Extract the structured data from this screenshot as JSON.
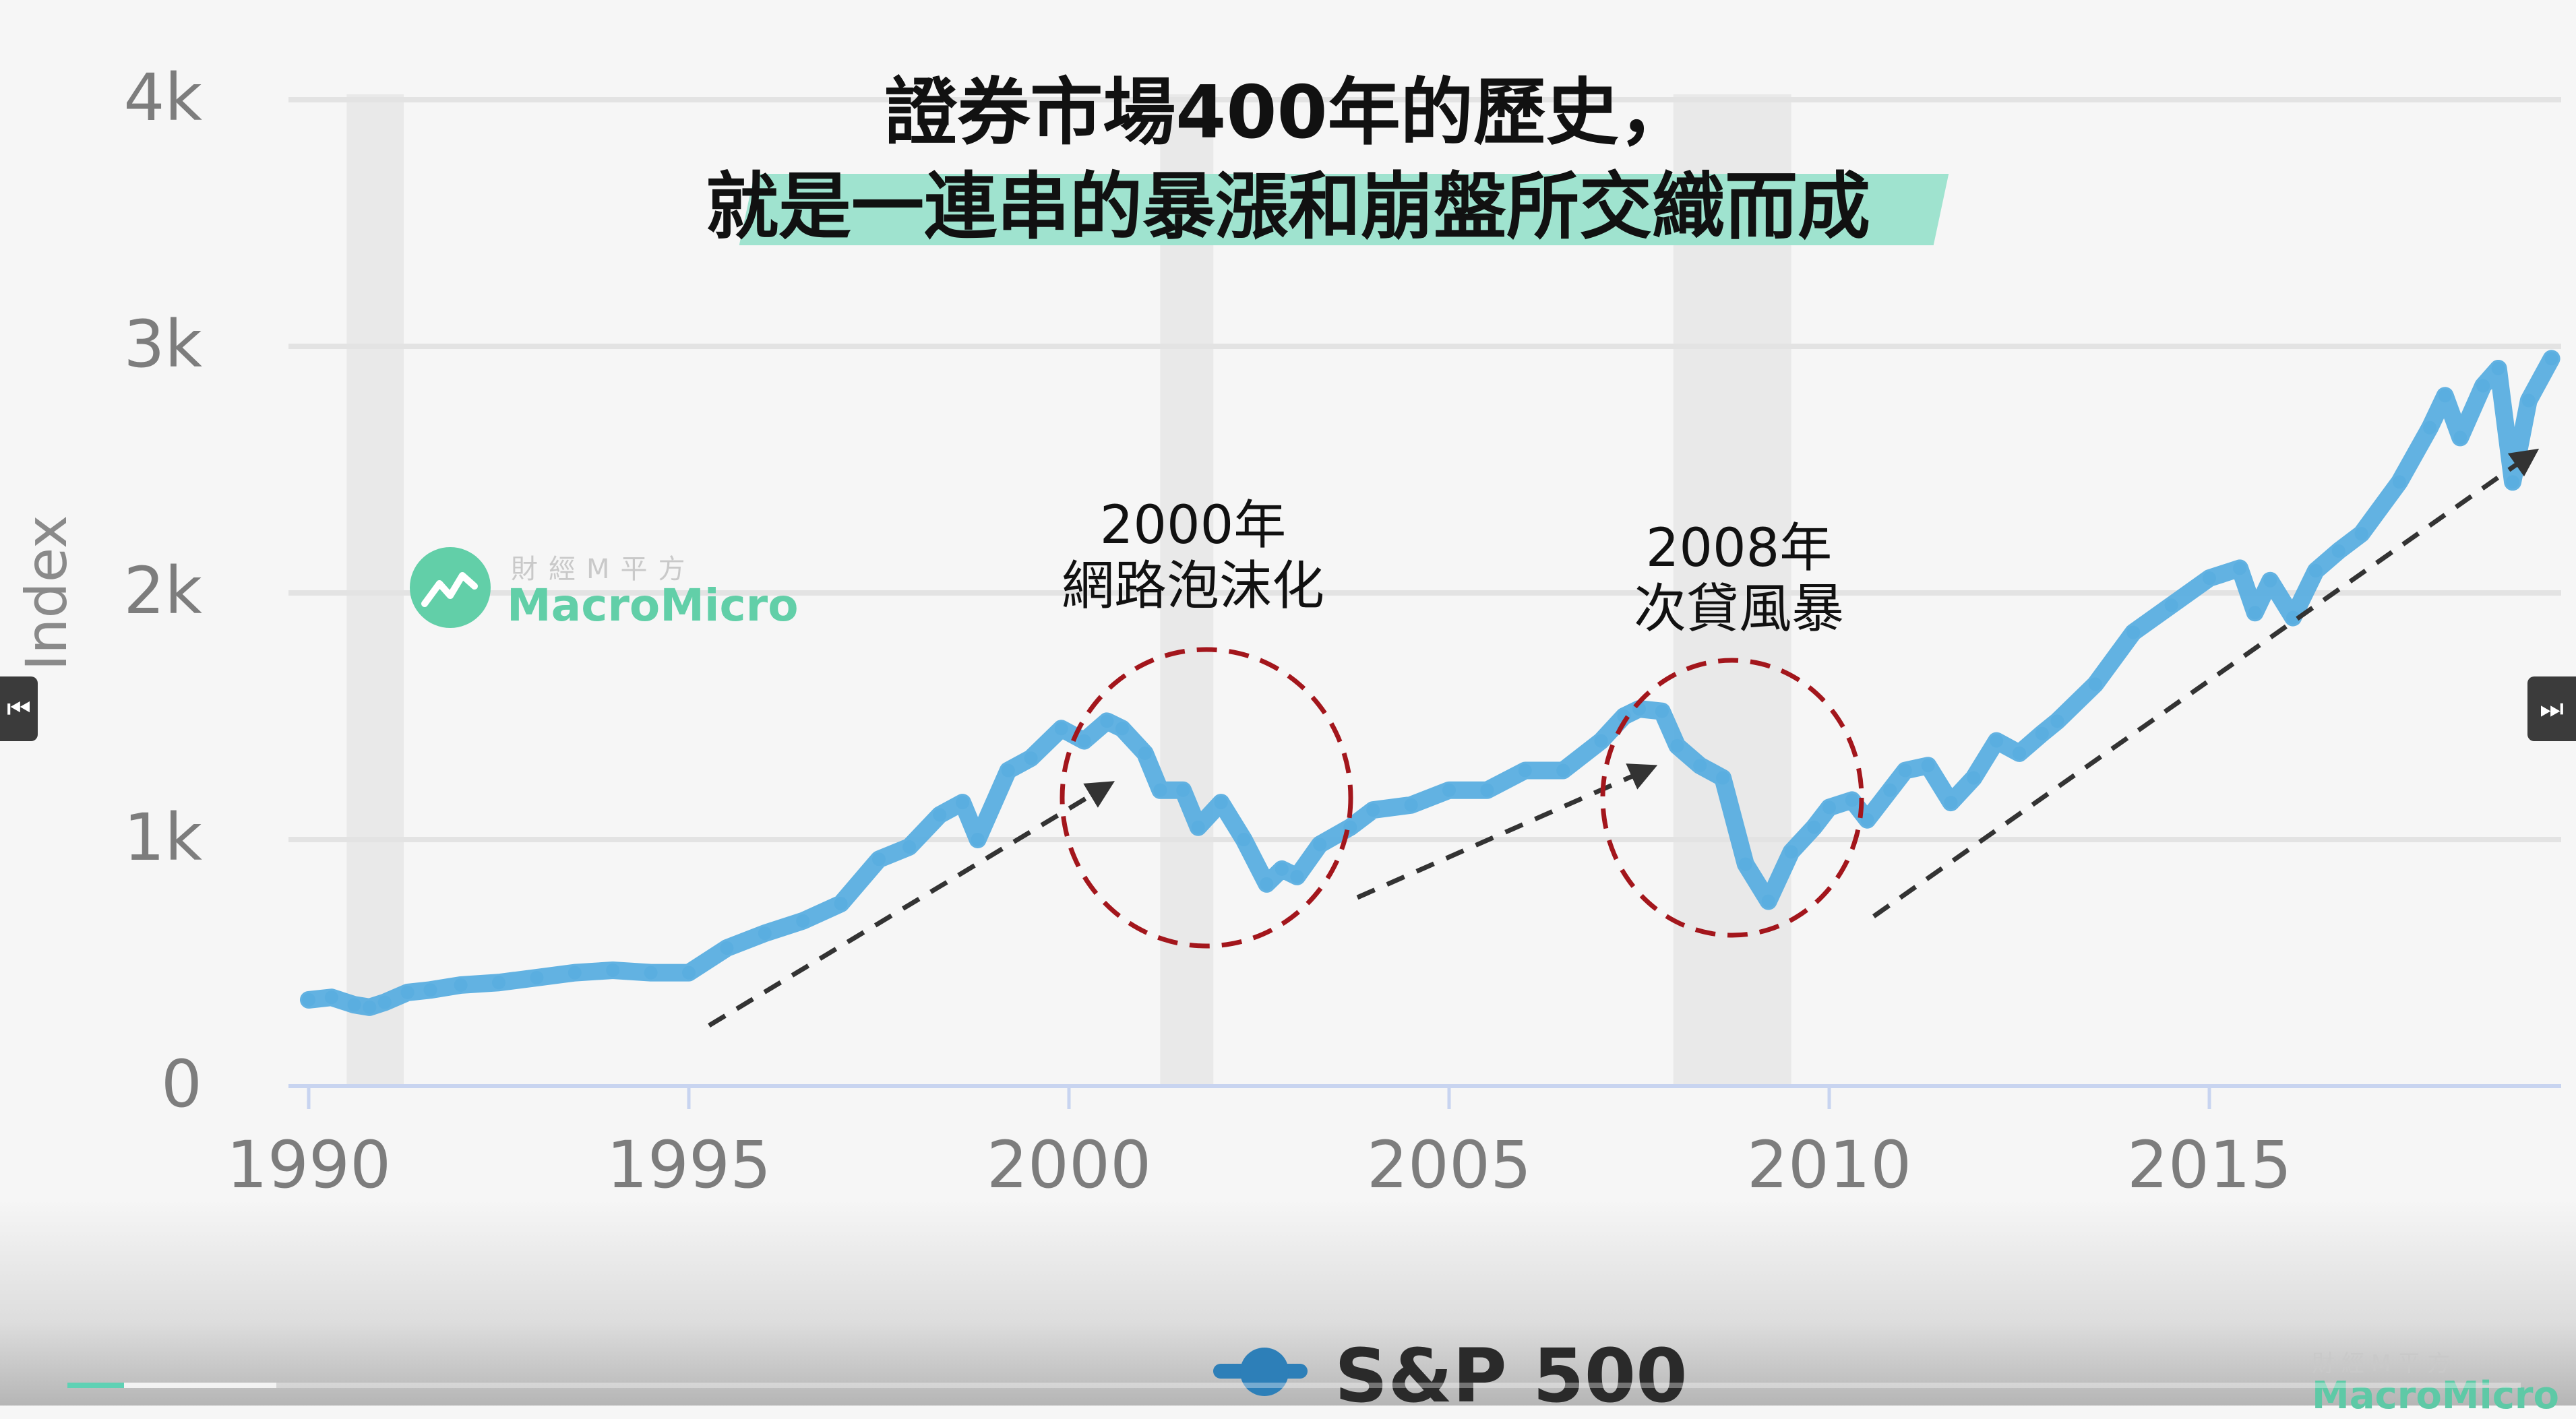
{
  "headline": {
    "line1": "證券市場400年的歷史，",
    "line2": "就是一連串的暴漲和崩盤所交織而成"
  },
  "annotations": [
    {
      "year": "2000年",
      "label": "網路泡沫化"
    },
    {
      "year": "2008年",
      "label": "次貸風暴"
    }
  ],
  "logo": {
    "cn": "財經M平方",
    "en": "MacroMicro"
  },
  "video": {
    "progress": 0.023
  },
  "colors": {
    "line": "#5aaee0",
    "accent": "#9fe3cf",
    "circle": "#a3161c",
    "arrow": "#333333",
    "recession": "#e6e6e6",
    "logo": "#62cfa8"
  },
  "chart_data": {
    "type": "line",
    "title": "",
    "xlabel": "",
    "ylabel": "Index",
    "xlim": [
      1990,
      2019.6
    ],
    "ylim": [
      0,
      4000
    ],
    "x_ticks": [
      1990,
      1995,
      2000,
      2005,
      2010,
      2015
    ],
    "y_ticks": [
      0,
      1000,
      2000,
      3000,
      4000
    ],
    "y_tick_labels": [
      "0",
      "1k",
      "2k",
      "3k",
      "4k"
    ],
    "grid": true,
    "legend_position": "bottom",
    "recession_bands": [
      [
        1990.5,
        1991.25
      ],
      [
        2001.2,
        2001.9
      ],
      [
        2007.95,
        2009.5
      ]
    ],
    "series": [
      {
        "name": "S&P 500",
        "x": [
          1990.0,
          1990.3,
          1990.6,
          1990.8,
          1991.0,
          1991.3,
          1991.6,
          1992.0,
          1992.5,
          1993.0,
          1993.5,
          1994.0,
          1994.5,
          1995.0,
          1995.5,
          1996.0,
          1996.5,
          1997.0,
          1997.5,
          1997.9,
          1998.3,
          1998.6,
          1998.8,
          1999.2,
          1999.5,
          1999.9,
          2000.2,
          2000.5,
          2000.7,
          2001.0,
          2001.2,
          2001.5,
          2001.7,
          2002.0,
          2002.3,
          2002.6,
          2002.8,
          2003.0,
          2003.3,
          2003.7,
          2004.0,
          2004.5,
          2005.0,
          2005.5,
          2006.0,
          2006.5,
          2007.0,
          2007.3,
          2007.5,
          2007.8,
          2008.0,
          2008.3,
          2008.6,
          2008.9,
          2009.2,
          2009.5,
          2009.8,
          2010.0,
          2010.3,
          2010.5,
          2010.8,
          2011.0,
          2011.3,
          2011.6,
          2011.9,
          2012.2,
          2012.5,
          2012.8,
          2013.0,
          2013.5,
          2014.0,
          2014.5,
          2015.0,
          2015.4,
          2015.6,
          2015.8,
          2016.1,
          2016.4,
          2016.7,
          2017.0,
          2017.5,
          2017.9,
          2018.1,
          2018.3,
          2018.6,
          2018.8,
          2018.99,
          2019.2,
          2019.5
        ],
        "values": [
          350,
          360,
          330,
          320,
          340,
          380,
          390,
          410,
          420,
          440,
          460,
          470,
          460,
          460,
          560,
          620,
          670,
          740,
          920,
          970,
          1100,
          1150,
          1000,
          1280,
          1330,
          1450,
          1400,
          1480,
          1450,
          1350,
          1200,
          1200,
          1050,
          1150,
          1000,
          820,
          880,
          850,
          980,
          1050,
          1120,
          1140,
          1200,
          1200,
          1280,
          1280,
          1400,
          1500,
          1530,
          1520,
          1380,
          1300,
          1250,
          900,
          750,
          950,
          1050,
          1130,
          1160,
          1080,
          1200,
          1280,
          1300,
          1150,
          1250,
          1400,
          1350,
          1430,
          1480,
          1630,
          1840,
          1950,
          2060,
          2100,
          1920,
          2050,
          1900,
          2090,
          2170,
          2240,
          2450,
          2670,
          2800,
          2630,
          2840,
          2910,
          2450,
          2780,
          2950
        ]
      }
    ]
  }
}
